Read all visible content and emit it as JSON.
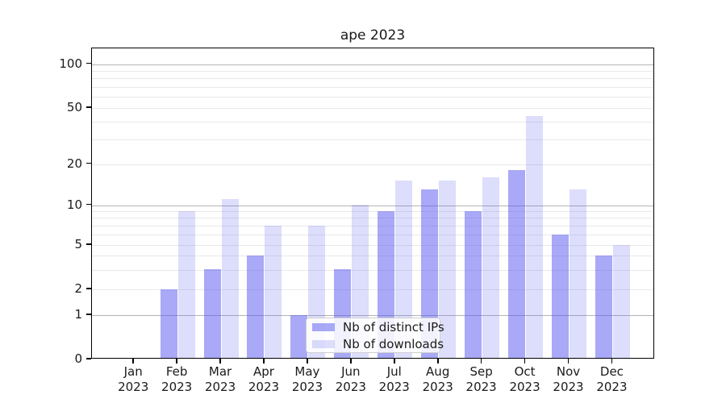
{
  "title": "ape 2023",
  "chart_data": {
    "type": "bar",
    "title": "ape 2023",
    "year": "2023",
    "months": [
      "Jan",
      "Feb",
      "Mar",
      "Apr",
      "May",
      "Jun",
      "Jul",
      "Aug",
      "Sep",
      "Oct",
      "Nov",
      "Dec"
    ],
    "categories": [
      "Jan 2023",
      "Feb 2023",
      "Mar 2023",
      "Apr 2023",
      "May 2023",
      "Jun 2023",
      "Jul 2023",
      "Aug 2023",
      "Sep 2023",
      "Oct 2023",
      "Nov 2023",
      "Dec 2023"
    ],
    "series": [
      {
        "name": "Nb of distinct IPs",
        "color": "rgba(84,84,240,0.5)",
        "values": [
          0,
          2,
          3,
          4,
          1,
          3,
          9,
          13,
          9,
          18,
          6,
          4
        ]
      },
      {
        "name": "Nb of downloads",
        "color": "rgba(84,84,240,0.2)",
        "values": [
          0,
          9,
          11,
          7,
          7,
          10,
          15,
          15,
          16,
          44,
          13,
          5
        ]
      }
    ],
    "yticks": [
      0,
      1,
      2,
      5,
      10,
      20,
      50,
      100
    ],
    "ylim": [
      0,
      130
    ],
    "xlabel": "",
    "ylabel": "",
    "scale": "symlog (linear 0-1, logarithmic above 1)",
    "grid": "horizontal, minor light + major dark at powers of 10",
    "legend_position": "lower center inside plot",
    "colors": {
      "bar_dark_hex": "#a9a9f7",
      "bar_light_hex": "#dcdcfc",
      "major_grid": "#b4b4b4",
      "minor_grid": "#e9e9e9",
      "spine": "#000000",
      "text": "#1a1a1a"
    }
  }
}
